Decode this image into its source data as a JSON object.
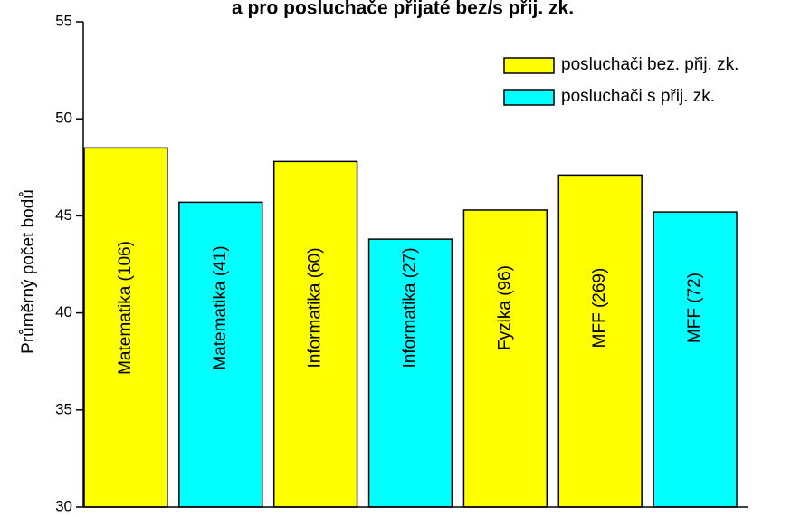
{
  "chart_data": {
    "type": "bar",
    "title": "a pro posluchače přijaté bez/s přij. zk.",
    "y_label": "Průměrný počet bodů",
    "categories": [
      "Matematika (106)",
      "Matematika (41)",
      "Informatika (60)",
      "Informatika (27)",
      "Fyzika (96)",
      "MFF (269)",
      "MFF (72)"
    ],
    "series": [
      {
        "name": "posluchači bez. přij. zk.",
        "color": "#ffff00",
        "values": [
          48.5,
          null,
          47.8,
          null,
          45.3,
          47.1,
          null
        ]
      },
      {
        "name": "posluchači s přij. zk.",
        "color": "#00ffff",
        "values": [
          null,
          45.7,
          null,
          43.8,
          null,
          null,
          45.2
        ]
      }
    ],
    "ylim": [
      30,
      55
    ],
    "yticks": [
      30,
      35,
      40,
      45,
      50,
      55
    ],
    "legend": "upper right"
  }
}
